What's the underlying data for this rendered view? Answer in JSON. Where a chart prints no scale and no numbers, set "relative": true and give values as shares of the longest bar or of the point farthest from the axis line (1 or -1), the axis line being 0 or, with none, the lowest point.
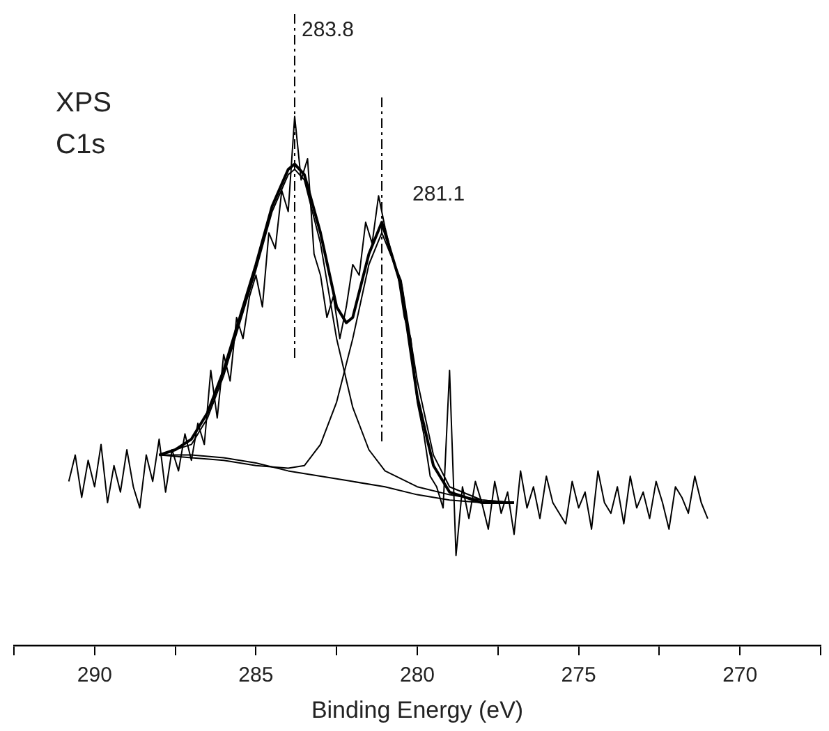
{
  "chart_data": {
    "type": "line",
    "xlabel": "Binding Energy (eV)",
    "relative": true,
    "grid": false,
    "legend": false,
    "marker": "none",
    "annotations": [
      "XPS",
      "C1s"
    ],
    "xlim": [
      292.5,
      267.5
    ],
    "xticks": [
      {
        "value": 292.5,
        "label": null
      },
      290,
      {
        "value": 287.5,
        "label": null
      },
      285,
      {
        "value": 282.5,
        "label": null
      },
      280,
      {
        "value": 277.5,
        "label": null
      },
      275,
      {
        "value": 272.5,
        "label": null
      },
      270,
      {
        "value": 267.5,
        "label": null
      }
    ],
    "ref_lines": [
      {
        "axis": "x",
        "value": 283.8,
        "label": "283.8",
        "line_style": "dashed",
        "color": "#000000"
      },
      {
        "axis": "x",
        "value": 281.1,
        "label": "281.1",
        "line_style": "dashed",
        "color": "#000000"
      }
    ],
    "series": [
      {
        "color": "#000000",
        "x": [
          290.8,
          290.6,
          290.4,
          290.2,
          290.0,
          289.8,
          289.6,
          289.4,
          289.2,
          289.0,
          288.8,
          288.6,
          288.4,
          288.2,
          288.0,
          287.8,
          287.6,
          287.4,
          287.2,
          287.0,
          286.8,
          286.6,
          286.4,
          286.2,
          286.0,
          285.8,
          285.6,
          285.4,
          285.2,
          285.0,
          284.8,
          284.6,
          284.4,
          284.2,
          284.0,
          283.8,
          283.6,
          283.4,
          283.2,
          283.0,
          282.8,
          282.6,
          282.4,
          282.2,
          282.0,
          281.8,
          281.6,
          281.4,
          281.2,
          281.0,
          280.8,
          280.6,
          280.4,
          280.2,
          280.0,
          279.8,
          279.6,
          279.4,
          279.2,
          279.0,
          278.8,
          278.6,
          278.4,
          278.2,
          278.0,
          277.8,
          277.6,
          277.4,
          277.2,
          277.0,
          276.8,
          276.6,
          276.4,
          276.2,
          276.0,
          275.8,
          275.4,
          275.2,
          275.0,
          274.8,
          274.6,
          274.4,
          274.2,
          274.0,
          273.8,
          273.6,
          273.4,
          273.2,
          273.0,
          272.8,
          272.6,
          272.4,
          272.2,
          272.0,
          271.8,
          271.6,
          271.4,
          271.2,
          271.0
        ],
        "values": [
          0.31,
          0.36,
          0.28,
          0.35,
          0.3,
          0.38,
          0.27,
          0.34,
          0.29,
          0.37,
          0.3,
          0.26,
          0.36,
          0.31,
          0.39,
          0.29,
          0.37,
          0.33,
          0.4,
          0.35,
          0.42,
          0.38,
          0.52,
          0.43,
          0.55,
          0.5,
          0.62,
          0.58,
          0.66,
          0.7,
          0.64,
          0.78,
          0.75,
          0.86,
          0.82,
          1.0,
          0.88,
          0.92,
          0.74,
          0.7,
          0.62,
          0.66,
          0.58,
          0.64,
          0.72,
          0.7,
          0.8,
          0.76,
          0.85,
          0.79,
          0.74,
          0.7,
          0.62,
          0.58,
          0.46,
          0.4,
          0.32,
          0.3,
          0.26,
          0.52,
          0.17,
          0.3,
          0.24,
          0.31,
          0.27,
          0.22,
          0.31,
          0.25,
          0.29,
          0.21,
          0.33,
          0.26,
          0.3,
          0.24,
          0.32,
          0.27,
          0.23,
          0.31,
          0.26,
          0.29,
          0.22,
          0.33,
          0.27,
          0.25,
          0.3,
          0.23,
          0.32,
          0.26,
          0.29,
          0.24,
          0.31,
          0.27,
          0.22,
          0.3,
          0.28,
          0.25,
          0.32,
          0.27,
          0.24
        ]
      },
      {
        "color": "#000000",
        "x": [
          288,
          287.5,
          287,
          286.5,
          286,
          285.5,
          285,
          284.5,
          284,
          283.8,
          283.5,
          283,
          282.5,
          282.2,
          282,
          281.5,
          281.1,
          280.5,
          280,
          279.5,
          279,
          278.5,
          278,
          277
        ],
        "values": [
          0.36,
          0.37,
          0.39,
          0.44,
          0.52,
          0.62,
          0.72,
          0.83,
          0.9,
          0.91,
          0.89,
          0.78,
          0.64,
          0.61,
          0.62,
          0.74,
          0.8,
          0.68,
          0.47,
          0.34,
          0.29,
          0.28,
          0.27,
          0.27
        ]
      },
      {
        "color": "#000000",
        "x": [
          288,
          287,
          286.5,
          286,
          285.5,
          285,
          284.5,
          284,
          283.8,
          283.5,
          283,
          282.5,
          282,
          281.5,
          281,
          280,
          279,
          278,
          277
        ],
        "values": [
          0.36,
          0.38,
          0.43,
          0.51,
          0.61,
          0.71,
          0.82,
          0.89,
          0.9,
          0.88,
          0.76,
          0.58,
          0.45,
          0.37,
          0.33,
          0.3,
          0.285,
          0.275,
          0.27
        ]
      },
      {
        "color": "#000000",
        "x": [
          288,
          287,
          286,
          285,
          284,
          283.5,
          283,
          282.5,
          282,
          281.5,
          281.1,
          280.5,
          280,
          279.5,
          279,
          278,
          277
        ],
        "values": [
          0.36,
          0.355,
          0.35,
          0.34,
          0.335,
          0.34,
          0.38,
          0.46,
          0.58,
          0.72,
          0.78,
          0.69,
          0.5,
          0.36,
          0.3,
          0.275,
          0.27
        ]
      },
      {
        "color": "#000000",
        "x": [
          288,
          287,
          286,
          285,
          284,
          283,
          282,
          281,
          280,
          279,
          278,
          277
        ],
        "values": [
          0.36,
          0.36,
          0.355,
          0.345,
          0.33,
          0.32,
          0.31,
          0.3,
          0.285,
          0.275,
          0.27,
          0.27
        ]
      }
    ]
  }
}
